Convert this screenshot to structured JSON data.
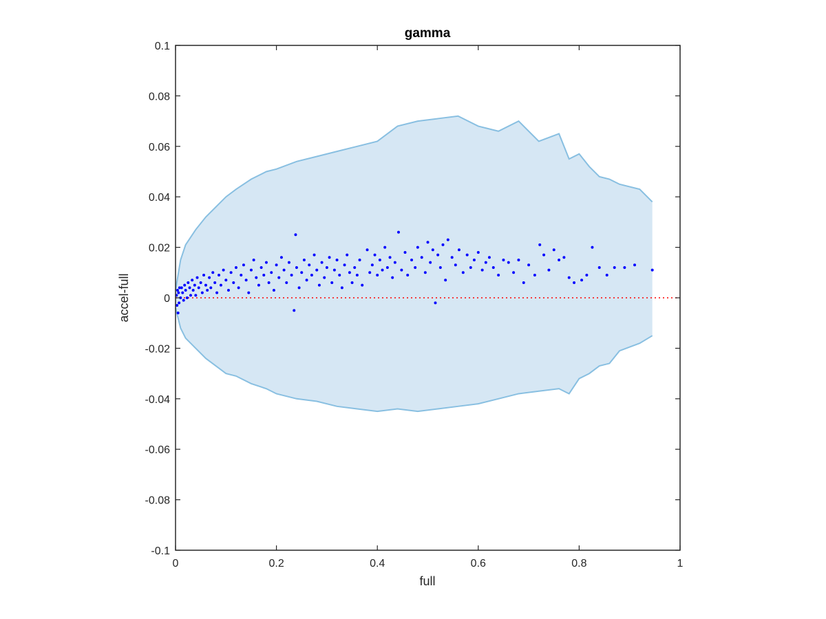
{
  "chart_data": {
    "type": "scatter",
    "title": "gamma",
    "xlabel": "full",
    "ylabel": "accel-full",
    "xlim": [
      0,
      1
    ],
    "ylim": [
      -0.1,
      0.1
    ],
    "x_ticks": [
      0,
      0.2,
      0.4,
      0.6,
      0.8,
      1
    ],
    "x_tick_labels": [
      "0",
      "0.2",
      "0.4",
      "0.6",
      "0.8",
      "1"
    ],
    "y_ticks": [
      -0.1,
      -0.08,
      -0.06,
      -0.04,
      -0.02,
      0,
      0.02,
      0.04,
      0.06,
      0.08,
      0.1
    ],
    "y_tick_labels": [
      "-0.1",
      "-0.08",
      "-0.06",
      "-0.04",
      "-0.02",
      "0",
      "0.02",
      "0.04",
      "0.06",
      "0.08",
      "0.1"
    ],
    "grid": false,
    "colors": {
      "band_fill": "#d6e7f4",
      "band_edge": "#88bfe1",
      "points": "#0000ff",
      "reference_line": "#ff0000",
      "axes": "#262626"
    },
    "reference_line": {
      "y": 0,
      "style": "dotted"
    },
    "band": {
      "x": [
        0,
        0.01,
        0.02,
        0.04,
        0.06,
        0.08,
        0.1,
        0.12,
        0.15,
        0.18,
        0.2,
        0.24,
        0.28,
        0.32,
        0.36,
        0.4,
        0.44,
        0.48,
        0.52,
        0.56,
        0.6,
        0.64,
        0.68,
        0.72,
        0.76,
        0.78,
        0.8,
        0.82,
        0.84,
        0.86,
        0.88,
        0.92,
        0.945
      ],
      "upper": [
        0.003,
        0.015,
        0.021,
        0.027,
        0.032,
        0.036,
        0.04,
        0.043,
        0.047,
        0.05,
        0.051,
        0.054,
        0.056,
        0.058,
        0.06,
        0.062,
        0.068,
        0.07,
        0.071,
        0.072,
        0.068,
        0.066,
        0.07,
        0.062,
        0.065,
        0.055,
        0.057,
        0.052,
        0.048,
        0.047,
        0.045,
        0.043,
        0.038
      ],
      "lower": [
        -0.004,
        -0.012,
        -0.016,
        -0.02,
        -0.024,
        -0.027,
        -0.03,
        -0.031,
        -0.034,
        -0.036,
        -0.038,
        -0.04,
        -0.041,
        -0.043,
        -0.044,
        -0.045,
        -0.044,
        -0.045,
        -0.044,
        -0.043,
        -0.042,
        -0.04,
        -0.038,
        -0.037,
        -0.036,
        -0.038,
        -0.032,
        -0.03,
        -0.027,
        -0.026,
        -0.021,
        -0.018,
        -0.015
      ]
    },
    "series": [
      {
        "points": [
          [
            0.002,
            0.001
          ],
          [
            0.003,
            -0.003
          ],
          [
            0.004,
            0.003
          ],
          [
            0.005,
            -0.006
          ],
          [
            0.006,
            0.002
          ],
          [
            0.007,
            -0.002
          ],
          [
            0.008,
            0.004
          ],
          [
            0.01,
            0.0
          ],
          [
            0.012,
            0.004
          ],
          [
            0.014,
            0.002
          ],
          [
            0.016,
            -0.001
          ],
          [
            0.018,
            0.005
          ],
          [
            0.02,
            0.003
          ],
          [
            0.023,
            0.0
          ],
          [
            0.025,
            0.006
          ],
          [
            0.028,
            0.004
          ],
          [
            0.03,
            0.001
          ],
          [
            0.033,
            0.007
          ],
          [
            0.035,
            0.003
          ],
          [
            0.038,
            0.005
          ],
          [
            0.04,
            0.001
          ],
          [
            0.043,
            0.008
          ],
          [
            0.046,
            0.004
          ],
          [
            0.05,
            0.006
          ],
          [
            0.053,
            0.002
          ],
          [
            0.056,
            0.009
          ],
          [
            0.06,
            0.005
          ],
          [
            0.063,
            0.003
          ],
          [
            0.067,
            0.008
          ],
          [
            0.07,
            0.004
          ],
          [
            0.074,
            0.01
          ],
          [
            0.078,
            0.006
          ],
          [
            0.082,
            0.002
          ],
          [
            0.086,
            0.009
          ],
          [
            0.09,
            0.005
          ],
          [
            0.095,
            0.011
          ],
          [
            0.1,
            0.007
          ],
          [
            0.105,
            0.003
          ],
          [
            0.11,
            0.01
          ],
          [
            0.115,
            0.006
          ],
          [
            0.12,
            0.012
          ],
          [
            0.125,
            0.004
          ],
          [
            0.13,
            0.009
          ],
          [
            0.135,
            0.013
          ],
          [
            0.14,
            0.007
          ],
          [
            0.145,
            0.002
          ],
          [
            0.15,
            0.011
          ],
          [
            0.155,
            0.015
          ],
          [
            0.16,
            0.008
          ],
          [
            0.165,
            0.005
          ],
          [
            0.17,
            0.012
          ],
          [
            0.175,
            0.009
          ],
          [
            0.18,
            0.014
          ],
          [
            0.185,
            0.006
          ],
          [
            0.19,
            0.01
          ],
          [
            0.195,
            0.003
          ],
          [
            0.2,
            0.013
          ],
          [
            0.205,
            0.008
          ],
          [
            0.21,
            0.016
          ],
          [
            0.215,
            0.011
          ],
          [
            0.22,
            0.006
          ],
          [
            0.225,
            0.014
          ],
          [
            0.23,
            0.009
          ],
          [
            0.235,
            -0.005
          ],
          [
            0.238,
            0.025
          ],
          [
            0.24,
            0.012
          ],
          [
            0.245,
            0.004
          ],
          [
            0.25,
            0.01
          ],
          [
            0.255,
            0.015
          ],
          [
            0.26,
            0.007
          ],
          [
            0.265,
            0.013
          ],
          [
            0.27,
            0.009
          ],
          [
            0.275,
            0.017
          ],
          [
            0.28,
            0.011
          ],
          [
            0.285,
            0.005
          ],
          [
            0.29,
            0.014
          ],
          [
            0.295,
            0.008
          ],
          [
            0.3,
            0.012
          ],
          [
            0.305,
            0.016
          ],
          [
            0.31,
            0.006
          ],
          [
            0.315,
            0.011
          ],
          [
            0.32,
            0.015
          ],
          [
            0.325,
            0.009
          ],
          [
            0.33,
            0.004
          ],
          [
            0.335,
            0.013
          ],
          [
            0.34,
            0.017
          ],
          [
            0.345,
            0.01
          ],
          [
            0.35,
            0.006
          ],
          [
            0.355,
            0.012
          ],
          [
            0.36,
            0.009
          ],
          [
            0.365,
            0.015
          ],
          [
            0.37,
            0.005
          ],
          [
            0.38,
            0.019
          ],
          [
            0.385,
            0.01
          ],
          [
            0.39,
            0.013
          ],
          [
            0.395,
            0.017
          ],
          [
            0.4,
            0.009
          ],
          [
            0.405,
            0.015
          ],
          [
            0.41,
            0.011
          ],
          [
            0.415,
            0.02
          ],
          [
            0.42,
            0.012
          ],
          [
            0.425,
            0.016
          ],
          [
            0.43,
            0.008
          ],
          [
            0.435,
            0.014
          ],
          [
            0.442,
            0.026
          ],
          [
            0.448,
            0.011
          ],
          [
            0.455,
            0.018
          ],
          [
            0.46,
            0.009
          ],
          [
            0.468,
            0.015
          ],
          [
            0.475,
            0.012
          ],
          [
            0.48,
            0.02
          ],
          [
            0.488,
            0.016
          ],
          [
            0.495,
            0.01
          ],
          [
            0.5,
            0.022
          ],
          [
            0.505,
            0.014
          ],
          [
            0.51,
            0.019
          ],
          [
            0.515,
            -0.002
          ],
          [
            0.52,
            0.017
          ],
          [
            0.525,
            0.012
          ],
          [
            0.53,
            0.021
          ],
          [
            0.535,
            0.007
          ],
          [
            0.54,
            0.023
          ],
          [
            0.548,
            0.016
          ],
          [
            0.555,
            0.013
          ],
          [
            0.562,
            0.019
          ],
          [
            0.57,
            0.01
          ],
          [
            0.578,
            0.017
          ],
          [
            0.585,
            0.012
          ],
          [
            0.592,
            0.015
          ],
          [
            0.6,
            0.018
          ],
          [
            0.608,
            0.011
          ],
          [
            0.615,
            0.014
          ],
          [
            0.622,
            0.016
          ],
          [
            0.63,
            0.012
          ],
          [
            0.64,
            0.009
          ],
          [
            0.65,
            0.015
          ],
          [
            0.66,
            0.014
          ],
          [
            0.67,
            0.01
          ],
          [
            0.68,
            0.015
          ],
          [
            0.69,
            0.006
          ],
          [
            0.7,
            0.013
          ],
          [
            0.712,
            0.009
          ],
          [
            0.722,
            0.021
          ],
          [
            0.73,
            0.017
          ],
          [
            0.74,
            0.011
          ],
          [
            0.75,
            0.019
          ],
          [
            0.76,
            0.015
          ],
          [
            0.77,
            0.016
          ],
          [
            0.78,
            0.008
          ],
          [
            0.79,
            0.006
          ],
          [
            0.805,
            0.007
          ],
          [
            0.815,
            0.009
          ],
          [
            0.826,
            0.02
          ],
          [
            0.84,
            0.012
          ],
          [
            0.855,
            0.009
          ],
          [
            0.87,
            0.012
          ],
          [
            0.89,
            0.012
          ],
          [
            0.91,
            0.013
          ],
          [
            0.945,
            0.011
          ]
        ]
      }
    ]
  }
}
